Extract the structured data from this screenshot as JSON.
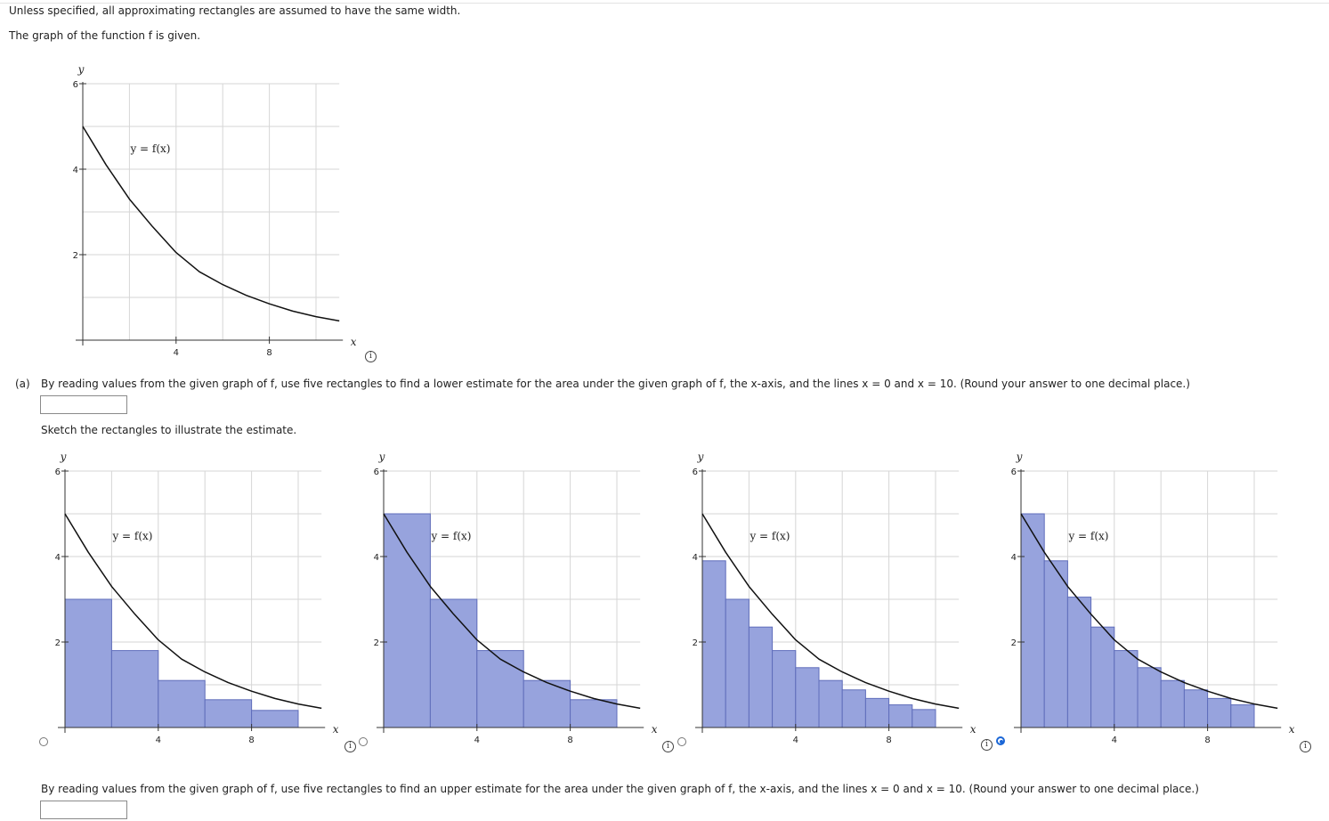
{
  "intro": {
    "line1": "Unless specified, all approximating rectangles are assumed to have the same width.",
    "line2": "The graph of the function f is given."
  },
  "graph_labels": {
    "y_axis": "y",
    "x_axis": "x",
    "function": "y = f(x)"
  },
  "info_glyph": "i",
  "part_a": {
    "label": "(a)",
    "question": "By reading values from the given graph of f, use five rectangles to find a lower estimate for the area under the given graph of f, the x-axis, and the lines x = 0 and x = 10. (Round your answer to one decimal place.)",
    "answer": "",
    "sketch_prompt": "Sketch the rectangles to illustrate the estimate."
  },
  "part_b": {
    "question": "By reading values from the given graph of f, use five rectangles to find an upper estimate for the area under the given graph of f, the x-axis, and the lines x = 0 and x = 10. (Round your answer to one decimal place.)",
    "answer": ""
  },
  "options": [
    {
      "id": "A",
      "selected": false
    },
    {
      "id": "B",
      "selected": false
    },
    {
      "id": "C",
      "selected": false
    },
    {
      "id": "D",
      "selected": true
    }
  ],
  "colors": {
    "rect_fill": "#97a3dd",
    "rect_stroke": "#5f6dbb",
    "curve": "#111111",
    "radio_selected": "#1a66d6"
  },
  "chart_data": [
    {
      "type": "line",
      "title": "",
      "xlabel": "x",
      "ylabel": "y",
      "xlim": [
        0,
        11
      ],
      "ylim": [
        0,
        6
      ],
      "x_ticks": [
        4,
        8
      ],
      "y_ticks": [
        2,
        4,
        6
      ],
      "grid": true,
      "series": [
        {
          "name": "y = f(x)",
          "x": [
            0,
            1,
            2,
            3,
            4,
            5,
            6,
            7,
            8,
            9,
            10,
            11
          ],
          "values": [
            5.0,
            4.1,
            3.3,
            2.65,
            2.05,
            1.6,
            1.3,
            1.05,
            0.85,
            0.68,
            0.55,
            0.45
          ]
        }
      ]
    },
    {
      "type": "bar",
      "title": "",
      "xlabel": "x",
      "ylabel": "y",
      "xlim": [
        0,
        11
      ],
      "ylim": [
        0,
        6
      ],
      "x_ticks": [
        4,
        8
      ],
      "y_ticks": [
        2,
        4,
        6
      ],
      "rectangles": [
        {
          "x0": 0,
          "x1": 2,
          "height": 3.0
        },
        {
          "x0": 2,
          "x1": 4,
          "height": 1.8
        },
        {
          "x0": 4,
          "x1": 6,
          "height": 1.1
        },
        {
          "x0": 6,
          "x1": 8,
          "height": 0.65
        },
        {
          "x0": 8,
          "x1": 10,
          "height": 0.4
        }
      ]
    },
    {
      "type": "bar",
      "title": "",
      "xlabel": "x",
      "ylabel": "y",
      "xlim": [
        0,
        11
      ],
      "ylim": [
        0,
        6
      ],
      "x_ticks": [
        4,
        8
      ],
      "y_ticks": [
        2,
        4,
        6
      ],
      "rectangles": [
        {
          "x0": 0,
          "x1": 2,
          "height": 5.0
        },
        {
          "x0": 2,
          "x1": 4,
          "height": 3.0
        },
        {
          "x0": 4,
          "x1": 6,
          "height": 1.8
        },
        {
          "x0": 6,
          "x1": 8,
          "height": 1.1
        },
        {
          "x0": 8,
          "x1": 10,
          "height": 0.65
        }
      ]
    },
    {
      "type": "bar",
      "title": "",
      "xlabel": "x",
      "ylabel": "y",
      "xlim": [
        0,
        11
      ],
      "ylim": [
        0,
        6
      ],
      "x_ticks": [
        4,
        8
      ],
      "y_ticks": [
        2,
        4,
        6
      ],
      "rectangles": [
        {
          "x0": 0,
          "x1": 1,
          "height": 3.9
        },
        {
          "x0": 1,
          "x1": 2,
          "height": 3.0
        },
        {
          "x0": 2,
          "x1": 3,
          "height": 2.35
        },
        {
          "x0": 3,
          "x1": 4,
          "height": 1.8
        },
        {
          "x0": 4,
          "x1": 5,
          "height": 1.4
        },
        {
          "x0": 5,
          "x1": 6,
          "height": 1.1
        },
        {
          "x0": 6,
          "x1": 7,
          "height": 0.88
        },
        {
          "x0": 7,
          "x1": 8,
          "height": 0.68
        },
        {
          "x0": 8,
          "x1": 9,
          "height": 0.53
        },
        {
          "x0": 9,
          "x1": 10,
          "height": 0.42
        }
      ]
    },
    {
      "type": "bar",
      "title": "",
      "xlabel": "x",
      "ylabel": "y",
      "xlim": [
        0,
        11
      ],
      "ylim": [
        0,
        6
      ],
      "x_ticks": [
        4,
        8
      ],
      "y_ticks": [
        2,
        4,
        6
      ],
      "rectangles": [
        {
          "x0": 0,
          "x1": 1,
          "height": 5.0
        },
        {
          "x0": 1,
          "x1": 2,
          "height": 3.9
        },
        {
          "x0": 2,
          "x1": 3,
          "height": 3.05
        },
        {
          "x0": 3,
          "x1": 4,
          "height": 2.35
        },
        {
          "x0": 4,
          "x1": 5,
          "height": 1.8
        },
        {
          "x0": 5,
          "x1": 6,
          "height": 1.4
        },
        {
          "x0": 6,
          "x1": 7,
          "height": 1.1
        },
        {
          "x0": 7,
          "x1": 8,
          "height": 0.88
        },
        {
          "x0": 8,
          "x1": 9,
          "height": 0.68
        },
        {
          "x0": 9,
          "x1": 10,
          "height": 0.53
        }
      ]
    }
  ]
}
